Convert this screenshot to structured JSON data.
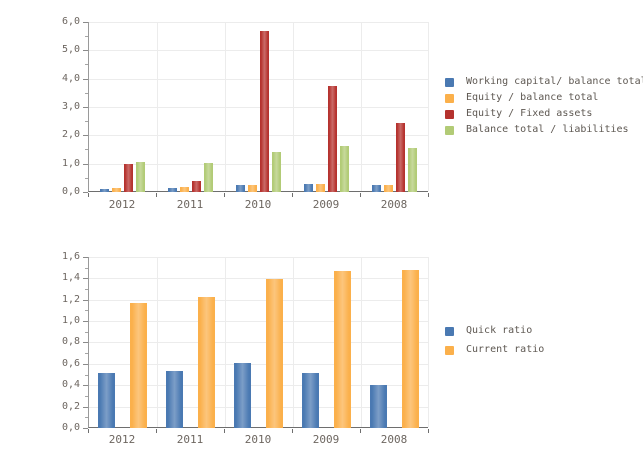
{
  "page": {
    "background": "#ffffff"
  },
  "chart_data": [
    {
      "type": "bar",
      "title": "",
      "categories": [
        "2012",
        "2011",
        "2010",
        "2009",
        "2008"
      ],
      "series": [
        {
          "name": "Working capital/ balance total",
          "color": "#4a79b2",
          "values": [
            0.12,
            0.15,
            0.26,
            0.28,
            0.25
          ]
        },
        {
          "name": "Equity / balance total",
          "color": "#fbb04b",
          "values": [
            0.13,
            0.16,
            0.26,
            0.29,
            0.26
          ]
        },
        {
          "name": "Equity / Fixed assets",
          "color": "#b5322e",
          "values": [
            0.98,
            0.38,
            5.68,
            3.74,
            2.44
          ]
        },
        {
          "name": "Balance total / liabilities",
          "color": "#b2cb76",
          "values": [
            1.07,
            1.01,
            1.41,
            1.63,
            1.56
          ]
        }
      ],
      "xlabel": "",
      "ylabel": "",
      "ylim": [
        0,
        6
      ],
      "yticks": [
        0,
        1,
        2,
        3,
        4,
        5,
        6
      ],
      "ytick_labels": [
        "0,0",
        "1,0",
        "2,0",
        "3,0",
        "4,0",
        "5,0",
        "6,0"
      ],
      "decimal_separator": ",",
      "grid": true,
      "legend_position": "right"
    },
    {
      "type": "bar",
      "title": "",
      "categories": [
        "2012",
        "2011",
        "2010",
        "2009",
        "2008"
      ],
      "series": [
        {
          "name": "Quick ratio",
          "color": "#4a79b2",
          "values": [
            0.51,
            0.53,
            0.61,
            0.51,
            0.4
          ]
        },
        {
          "name": "Current ratio",
          "color": "#fbb04b",
          "values": [
            1.17,
            1.23,
            1.39,
            1.47,
            1.48
          ]
        }
      ],
      "xlabel": "",
      "ylabel": "",
      "ylim": [
        0,
        1.6
      ],
      "yticks": [
        0,
        0.2,
        0.4,
        0.6,
        0.8,
        1.0,
        1.2,
        1.4,
        1.6
      ],
      "ytick_labels": [
        "0,0",
        "0,2",
        "0,4",
        "0,6",
        "0,8",
        "1,0",
        "1,2",
        "1,4",
        "1,6"
      ],
      "decimal_separator": ",",
      "grid": true,
      "legend_position": "right"
    }
  ]
}
